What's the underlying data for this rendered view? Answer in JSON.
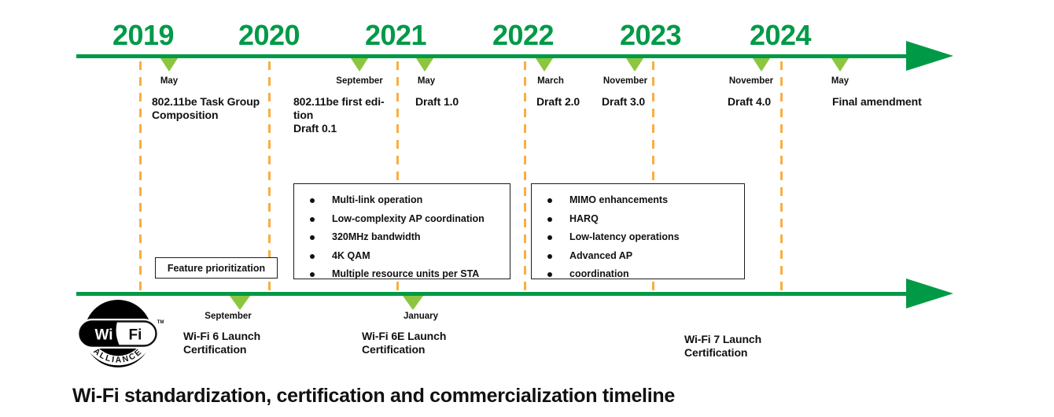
{
  "title": "Wi-Fi standardization, certification and commercialization timeline",
  "colors": {
    "timeline_green": "#009A47",
    "marker_green": "#8CC63F",
    "divider_orange": "#F9AE42",
    "text_black": "#111111"
  },
  "top_timeline": {
    "years": [
      "2019",
      "2020",
      "2021",
      "2022",
      "2023",
      "2024"
    ],
    "events": [
      {
        "month": "May",
        "title": "802.11be Task Group\nComposition"
      },
      {
        "month": "September",
        "title": "802.11be first edi-\ntion\nDraft 0.1"
      },
      {
        "month": "May",
        "title": "Draft 1.0"
      },
      {
        "month": "March",
        "title": "Draft 2.0"
      },
      {
        "month": "November",
        "title": "Draft 3.0"
      },
      {
        "month": "November",
        "title": "Draft 4.0"
      },
      {
        "month": "May",
        "title": "Final amendment"
      }
    ]
  },
  "feature_boxes": [
    {
      "items": [
        "Multi-link operation",
        "Low-complexity AP coordination",
        "320MHz bandwidth",
        "4K QAM",
        "Multiple resource units per STA"
      ]
    },
    {
      "items": [
        "MIMO enhancements",
        "HARQ",
        "Low-latency operations",
        "Advanced AP",
        "coordination"
      ]
    }
  ],
  "feature_prioritization_label": "Feature prioritization",
  "bottom_timeline": {
    "events": [
      {
        "month": "September",
        "title": "Wi-Fi 6 Launch\nCertification"
      },
      {
        "month": "January",
        "title": "Wi-Fi 6E Launch\nCertification"
      },
      {
        "month": "",
        "title": "Wi-Fi 7 Launch\nCertification"
      }
    ]
  },
  "logo": {
    "wi": "Wi",
    "fi": "Fi",
    "tm": "TM",
    "alliance": "ALLIANCE"
  }
}
